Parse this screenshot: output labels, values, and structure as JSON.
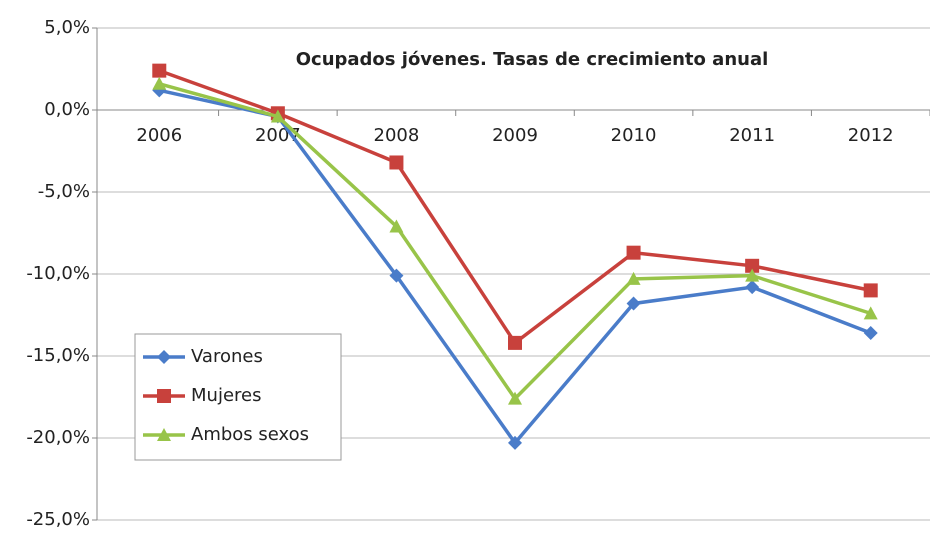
{
  "chart_data": {
    "type": "line",
    "title": "Ocupados jóvenes. Tasas de crecimiento anual",
    "categories": [
      "2006",
      "2007",
      "2008",
      "2009",
      "2010",
      "2011",
      "2012"
    ],
    "series": [
      {
        "name": "Varones",
        "color": "#4a7cc9",
        "marker": "diamond",
        "values": [
          1.2,
          -0.4,
          -10.1,
          -20.3,
          -11.8,
          -10.8,
          -13.6
        ]
      },
      {
        "name": "Mujeres",
        "color": "#c8413c",
        "marker": "square",
        "values": [
          2.4,
          -0.2,
          -3.2,
          -14.2,
          -8.7,
          -9.5,
          -11.0
        ]
      },
      {
        "name": "Ambos sexos",
        "color": "#98c449",
        "marker": "triangle",
        "values": [
          1.6,
          -0.4,
          -7.1,
          -17.6,
          -10.3,
          -10.1,
          -12.4
        ]
      }
    ],
    "ylim": [
      -25,
      5
    ],
    "yticks": [
      {
        "value": -25,
        "label": "-25,0%"
      },
      {
        "value": -20,
        "label": "-20,0%"
      },
      {
        "value": -15,
        "label": "-15,0%"
      },
      {
        "value": -10,
        "label": "-10,0%"
      },
      {
        "value": -5,
        "label": "-5,0%"
      },
      {
        "value": 0,
        "label": "0,0%"
      },
      {
        "value": 5,
        "label": "5,0%"
      }
    ],
    "grid": true,
    "legend": "lower left"
  }
}
